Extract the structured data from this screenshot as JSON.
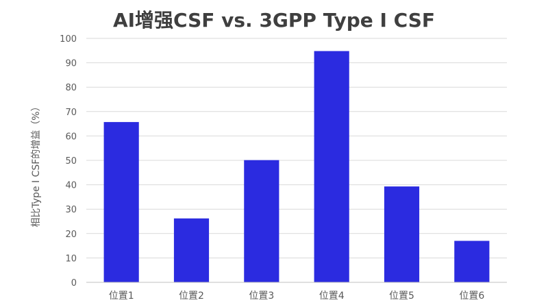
{
  "chart_data": {
    "type": "bar",
    "title": "AI增强CSF vs. 3GPP Type I CSF",
    "xlabel": "",
    "ylabel": "相比Type I CSF的增益（%）",
    "categories": [
      "位置1",
      "位置2",
      "位置3",
      "位置4",
      "位置5",
      "位置6"
    ],
    "values": [
      65.7,
      26.2,
      50.1,
      94.8,
      39.3,
      17.0
    ],
    "ylim": [
      0,
      100
    ],
    "yticks": [
      0,
      10,
      20,
      30,
      40,
      50,
      60,
      70,
      80,
      90,
      100
    ],
    "grid": true,
    "legend": "none",
    "colors": {
      "bar": "#2b2be0",
      "grid": "#d9d9d9",
      "axis": "#bfbfbf",
      "tick_text": "#595959",
      "title": "#3f3f3f"
    }
  }
}
